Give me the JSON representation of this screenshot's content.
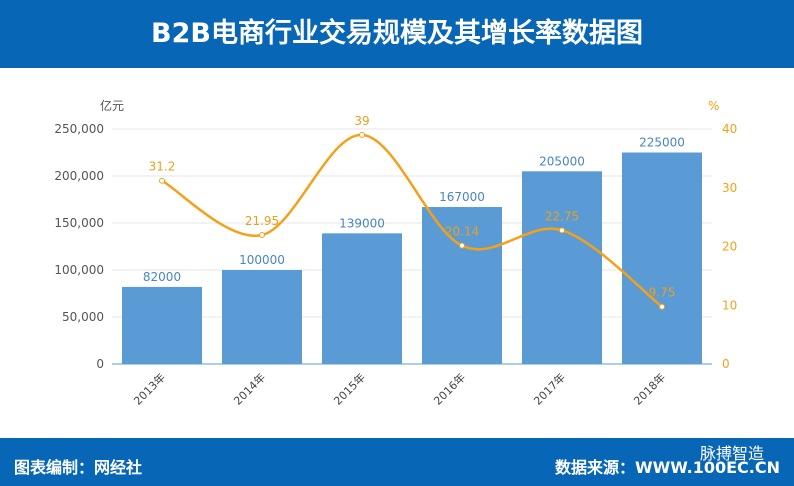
{
  "header": {
    "title": "B2B电商行业交易规模及其增长率数据图"
  },
  "footer": {
    "left": "图表编制：网经社",
    "right": "数据来源：WWW.100EC.CN",
    "watermark": "脉搏智造"
  },
  "chart_data": {
    "type": "bar+line",
    "categories": [
      "2013年",
      "2014年",
      "2015年",
      "2016年",
      "2017年",
      "2018年"
    ],
    "series": [
      {
        "axis": "left",
        "type": "bar",
        "values": [
          82000,
          100000,
          139000,
          167000,
          205000,
          225000
        ],
        "color": "#5b9bd5"
      },
      {
        "axis": "right",
        "type": "line",
        "values": [
          31.2,
          21.95,
          39,
          20.14,
          22.75,
          9.75
        ],
        "color": "#f5a01a"
      }
    ],
    "ylabel": "亿元",
    "y2label": "%",
    "ylim": [
      0,
      250000
    ],
    "y2lim": [
      0,
      40
    ],
    "yticks": [
      "0",
      "50,000",
      "100,000",
      "150,000",
      "200,000",
      "250,000"
    ],
    "y2ticks": [
      "0",
      "10",
      "20",
      "30",
      "40"
    ],
    "grid": true
  }
}
